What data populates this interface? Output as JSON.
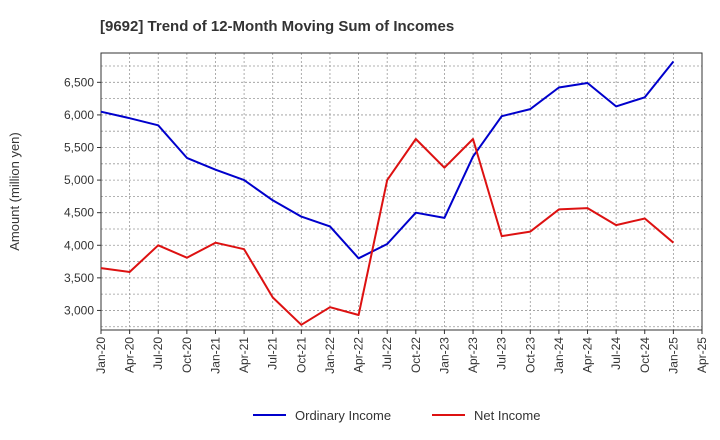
{
  "chart_data": {
    "type": "line",
    "title": "[9692]  Trend of 12-Month Moving Sum of Incomes",
    "xlabel": "",
    "ylabel": "Amount (million yen)",
    "ylim": [
      2700,
      6950
    ],
    "yticks": [
      3000,
      3500,
      4000,
      4500,
      5000,
      5500,
      6000,
      6500
    ],
    "ytick_labels": [
      "3,000",
      "3,500",
      "4,000",
      "4,500",
      "5,000",
      "5,500",
      "6,000",
      "6,500"
    ],
    "categories": [
      "Jan-20",
      "Apr-20",
      "Jul-20",
      "Oct-20",
      "Jan-21",
      "Apr-21",
      "Jul-21",
      "Oct-21",
      "Jan-22",
      "Apr-22",
      "Jul-22",
      "Oct-22",
      "Jan-23",
      "Apr-23",
      "Jul-23",
      "Oct-23",
      "Jan-24",
      "Apr-24",
      "Jul-24",
      "Oct-24",
      "Jan-25",
      "Apr-25"
    ],
    "grid": true,
    "legend_position": "bottom-center",
    "series": [
      {
        "name": "Ordinary Income",
        "color": "#0000cc",
        "values": [
          6050,
          5950,
          5840,
          5340,
          5160,
          5000,
          4690,
          4440,
          4290,
          3800,
          4020,
          4500,
          4420,
          5360,
          5980,
          6090,
          6420,
          6490,
          6130,
          6270,
          6820,
          null
        ]
      },
      {
        "name": "Net Income",
        "color": "#dd1111",
        "values": [
          3650,
          3590,
          4000,
          3810,
          4040,
          3940,
          3200,
          2780,
          3050,
          2930,
          5000,
          5630,
          5190,
          5630,
          4140,
          4210,
          4550,
          4570,
          4310,
          4410,
          4040,
          null
        ]
      }
    ]
  }
}
